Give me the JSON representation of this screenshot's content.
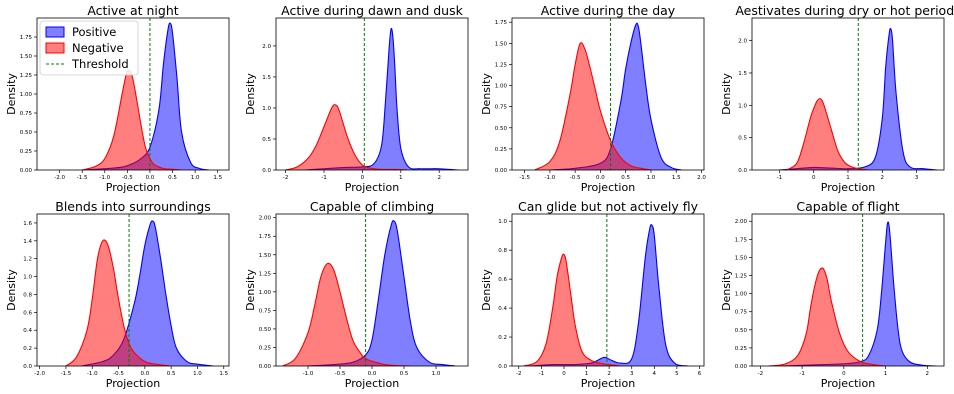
{
  "legend": {
    "placement": "top-left",
    "panel": 0,
    "entries": [
      {
        "label": "Positive",
        "color": "#0000ff",
        "kind": "patch"
      },
      {
        "label": "Negative",
        "color": "#ff0000",
        "kind": "patch"
      },
      {
        "label": "Threshold",
        "color": "#008000",
        "kind": "dashed-line"
      }
    ]
  },
  "colors": {
    "positive": "#0000ff",
    "negative": "#ff0000",
    "threshold": "#008000"
  },
  "chart_data": [
    {
      "type": "area",
      "title": "Active at night",
      "xlabel": "Projection",
      "ylabel": "Density",
      "xlim": [
        -2.5,
        1.75
      ],
      "ylim": [
        0,
        2.0
      ],
      "xticks": [
        "-2.0",
        "-1.5",
        "-1.0",
        "-0.5",
        "0.0",
        "0.5",
        "1.0",
        "1.5"
      ],
      "yticks": [
        "0.00",
        "0.25",
        "0.50",
        "0.75",
        "1.00",
        "1.25",
        "1.50",
        "1.75"
      ],
      "grid": false,
      "threshold": 0.0,
      "series": [
        {
          "name": "Positive",
          "x": [
            -1.5,
            -1.2,
            -0.9,
            -0.6,
            -0.4,
            -0.2,
            0.0,
            0.2,
            0.3,
            0.4,
            0.45,
            0.5,
            0.6,
            0.7,
            0.9,
            1.1,
            1.3
          ],
          "y": [
            0.0,
            0.01,
            0.02,
            0.04,
            0.08,
            0.15,
            0.3,
            0.8,
            1.4,
            1.85,
            1.93,
            1.8,
            1.2,
            0.5,
            0.1,
            0.02,
            0.0
          ]
        },
        {
          "name": "Negative",
          "x": [
            -1.5,
            -1.2,
            -1.0,
            -0.8,
            -0.6,
            -0.5,
            -0.4,
            -0.3,
            -0.2,
            -0.1,
            0.0,
            0.1,
            0.3,
            0.5,
            0.7
          ],
          "y": [
            0.0,
            0.05,
            0.15,
            0.45,
            1.05,
            1.3,
            1.25,
            0.95,
            0.6,
            0.3,
            0.15,
            0.07,
            0.02,
            0.01,
            0.0
          ]
        }
      ]
    },
    {
      "type": "area",
      "title": "Active during dawn and dusk",
      "xlabel": "Projection",
      "ylabel": "Density",
      "xlim": [
        -2.25,
        2.75
      ],
      "ylim": [
        0,
        2.45
      ],
      "xticks": [
        "-2",
        "-1",
        "0",
        "1",
        "2"
      ],
      "yticks": [
        "0.0",
        "0.5",
        "1.0",
        "1.5",
        "2.0"
      ],
      "grid": false,
      "threshold": 0.05,
      "series": [
        {
          "name": "Positive",
          "x": [
            -1.5,
            -1.0,
            -0.5,
            0.0,
            0.3,
            0.5,
            0.6,
            0.7,
            0.75,
            0.8,
            0.85,
            0.9,
            1.0,
            1.2,
            1.5,
            2.0,
            2.5
          ],
          "y": [
            0.0,
            0.02,
            0.04,
            0.05,
            0.1,
            0.4,
            1.1,
            2.0,
            2.28,
            2.1,
            1.6,
            1.0,
            0.35,
            0.05,
            0.02,
            0.02,
            0.0
          ]
        },
        {
          "name": "Negative",
          "x": [
            -2.0,
            -1.7,
            -1.4,
            -1.2,
            -1.0,
            -0.8,
            -0.7,
            -0.6,
            -0.4,
            -0.2,
            0.0,
            0.2,
            0.5,
            0.8,
            1.2
          ],
          "y": [
            0.0,
            0.05,
            0.2,
            0.4,
            0.7,
            1.0,
            1.05,
            0.95,
            0.55,
            0.25,
            0.08,
            0.03,
            0.01,
            0.01,
            0.0
          ]
        }
      ]
    },
    {
      "type": "area",
      "title": "Active during the day",
      "xlabel": "Projection",
      "ylabel": "Density",
      "xlim": [
        -1.75,
        2.05
      ],
      "ylim": [
        0,
        1.8
      ],
      "xticks": [
        "-1.5",
        "-1.0",
        "-0.5",
        "0.0",
        "0.5",
        "1.0",
        "1.5",
        "2.0"
      ],
      "yticks": [
        "0.00",
        "0.25",
        "0.50",
        "0.75",
        "1.00",
        "1.25",
        "1.50",
        "1.75"
      ],
      "grid": false,
      "threshold": 0.2,
      "series": [
        {
          "name": "Positive",
          "x": [
            -1.0,
            -0.5,
            0.0,
            0.2,
            0.4,
            0.5,
            0.6,
            0.7,
            0.75,
            0.8,
            0.9,
            1.0,
            1.2,
            1.4,
            1.6
          ],
          "y": [
            0.0,
            0.02,
            0.08,
            0.25,
            0.8,
            1.2,
            1.5,
            1.72,
            1.7,
            1.5,
            1.0,
            0.6,
            0.15,
            0.03,
            0.0
          ]
        },
        {
          "name": "Negative",
          "x": [
            -1.3,
            -1.0,
            -0.8,
            -0.6,
            -0.5,
            -0.4,
            -0.3,
            -0.2,
            -0.1,
            0.0,
            0.2,
            0.4,
            0.6,
            0.8,
            1.0
          ],
          "y": [
            0.0,
            0.1,
            0.35,
            0.9,
            1.25,
            1.5,
            1.42,
            1.2,
            0.95,
            0.7,
            0.35,
            0.15,
            0.05,
            0.02,
            0.0
          ]
        }
      ]
    },
    {
      "type": "area",
      "title": "Aestivates during dry or hot periods",
      "xlabel": "Projection",
      "ylabel": "Density",
      "xlim": [
        -1.8,
        3.8
      ],
      "ylim": [
        0,
        2.35
      ],
      "xticks": [
        "-1",
        "0",
        "1",
        "2",
        "3"
      ],
      "yticks": [
        "0.0",
        "0.5",
        "1.0",
        "1.5",
        "2.0"
      ],
      "grid": false,
      "threshold": 1.3,
      "series": [
        {
          "name": "Positive",
          "x": [
            -1.0,
            -0.5,
            0.0,
            0.5,
            1.0,
            1.5,
            1.8,
            2.0,
            2.1,
            2.2,
            2.25,
            2.3,
            2.4,
            2.6,
            2.8,
            3.2,
            3.6
          ],
          "y": [
            0.0,
            0.02,
            0.04,
            0.03,
            0.02,
            0.05,
            0.2,
            0.8,
            1.6,
            2.1,
            2.18,
            2.0,
            1.2,
            0.3,
            0.05,
            0.02,
            0.0
          ]
        },
        {
          "name": "Negative",
          "x": [
            -0.8,
            -0.5,
            -0.3,
            -0.1,
            0.0,
            0.1,
            0.2,
            0.3,
            0.5,
            0.7,
            0.9,
            1.1,
            1.3,
            1.6
          ],
          "y": [
            0.0,
            0.1,
            0.4,
            0.8,
            0.95,
            1.07,
            1.1,
            1.0,
            0.65,
            0.3,
            0.12,
            0.05,
            0.02,
            0.0
          ]
        }
      ]
    },
    {
      "type": "area",
      "title": "Blends into surroundings",
      "xlabel": "Projection",
      "ylabel": "Density",
      "xlim": [
        -2.05,
        1.6
      ],
      "ylim": [
        0,
        1.7
      ],
      "xticks": [
        "-2.0",
        "-1.5",
        "-1.0",
        "-0.5",
        "0.0",
        "0.5",
        "1.0",
        "1.5"
      ],
      "yticks": [
        "0.0",
        "0.2",
        "0.4",
        "0.6",
        "0.8",
        "1.0",
        "1.2",
        "1.4",
        "1.6"
      ],
      "grid": false,
      "threshold": -0.3,
      "series": [
        {
          "name": "Positive",
          "x": [
            -1.2,
            -0.8,
            -0.6,
            -0.4,
            -0.2,
            -0.1,
            0.0,
            0.1,
            0.15,
            0.2,
            0.3,
            0.4,
            0.5,
            0.6,
            0.8,
            1.0,
            1.3
          ],
          "y": [
            0.0,
            0.05,
            0.12,
            0.3,
            0.7,
            1.0,
            1.35,
            1.58,
            1.62,
            1.55,
            1.2,
            0.8,
            0.45,
            0.2,
            0.05,
            0.02,
            0.0
          ]
        },
        {
          "name": "Negative",
          "x": [
            -1.5,
            -1.3,
            -1.1,
            -1.0,
            -0.9,
            -0.8,
            -0.7,
            -0.6,
            -0.5,
            -0.4,
            -0.3,
            -0.2,
            0.0,
            0.2,
            0.5
          ],
          "y": [
            0.0,
            0.1,
            0.4,
            0.75,
            1.2,
            1.4,
            1.35,
            1.1,
            0.75,
            0.45,
            0.25,
            0.15,
            0.05,
            0.02,
            0.0
          ]
        }
      ]
    },
    {
      "type": "area",
      "title": "Capable of climbing",
      "xlabel": "Projection",
      "ylabel": "Density",
      "xlim": [
        -1.5,
        1.5
      ],
      "ylim": [
        0,
        2.05
      ],
      "xticks": [
        "-1.0",
        "-0.5",
        "0.0",
        "0.5",
        "1.0"
      ],
      "yticks": [
        "0.00",
        "0.25",
        "0.50",
        "0.75",
        "1.00",
        "1.25",
        "1.50",
        "1.75",
        "2.00"
      ],
      "grid": false,
      "threshold": -0.1,
      "series": [
        {
          "name": "Positive",
          "x": [
            -1.0,
            -0.6,
            -0.3,
            -0.1,
            0.0,
            0.1,
            0.2,
            0.3,
            0.35,
            0.4,
            0.5,
            0.6,
            0.7,
            0.9,
            1.1,
            1.3
          ],
          "y": [
            0.0,
            0.02,
            0.05,
            0.15,
            0.35,
            0.9,
            1.5,
            1.9,
            1.95,
            1.8,
            1.2,
            0.6,
            0.25,
            0.05,
            0.02,
            0.0
          ]
        },
        {
          "name": "Negative",
          "x": [
            -1.4,
            -1.2,
            -1.0,
            -0.9,
            -0.8,
            -0.7,
            -0.6,
            -0.5,
            -0.4,
            -0.3,
            -0.2,
            -0.1,
            0.1,
            0.3,
            0.6
          ],
          "y": [
            0.0,
            0.1,
            0.45,
            0.8,
            1.2,
            1.38,
            1.3,
            1.0,
            0.65,
            0.35,
            0.2,
            0.1,
            0.04,
            0.01,
            0.0
          ]
        }
      ]
    },
    {
      "type": "area",
      "title": "Can glide but not actively fly",
      "xlabel": "Projection",
      "ylabel": "Density",
      "xlim": [
        -2.3,
        6.2
      ],
      "ylim": [
        0,
        1.05
      ],
      "xticks": [
        "-2",
        "-1",
        "0",
        "1",
        "2",
        "3",
        "4",
        "5",
        "6"
      ],
      "yticks": [
        "0.0",
        "0.2",
        "0.4",
        "0.6",
        "0.8",
        "1.0"
      ],
      "grid": false,
      "threshold": 1.9,
      "series": [
        {
          "name": "Positive",
          "x": [
            -1.5,
            -0.5,
            0.5,
            1.2,
            1.5,
            1.8,
            2.1,
            2.5,
            3.0,
            3.3,
            3.6,
            3.8,
            3.9,
            4.0,
            4.2,
            4.5,
            4.9,
            5.5
          ],
          "y": [
            0.0,
            0.01,
            0.01,
            0.02,
            0.04,
            0.06,
            0.04,
            0.02,
            0.05,
            0.3,
            0.75,
            0.95,
            0.97,
            0.9,
            0.55,
            0.15,
            0.02,
            0.0
          ]
        },
        {
          "name": "Negative",
          "x": [
            -1.8,
            -1.2,
            -0.8,
            -0.5,
            -0.3,
            -0.1,
            0.0,
            0.1,
            0.3,
            0.5,
            0.8,
            1.2,
            1.6,
            2.0,
            2.5
          ],
          "y": [
            0.0,
            0.03,
            0.15,
            0.4,
            0.62,
            0.75,
            0.77,
            0.72,
            0.5,
            0.28,
            0.1,
            0.04,
            0.02,
            0.01,
            0.0
          ]
        }
      ]
    },
    {
      "type": "area",
      "title": "Capable of flight",
      "xlabel": "Projection",
      "ylabel": "Density",
      "xlim": [
        -2.2,
        2.4
      ],
      "ylim": [
        0,
        2.1
      ],
      "xticks": [
        "-2",
        "-1",
        "0",
        "1",
        "2"
      ],
      "yticks": [
        "0.00",
        "0.25",
        "0.50",
        "0.75",
        "1.00",
        "1.25",
        "1.50",
        "1.75",
        "2.00"
      ],
      "grid": false,
      "threshold": 0.45,
      "series": [
        {
          "name": "Positive",
          "x": [
            -1.5,
            -1.0,
            -0.5,
            0.0,
            0.4,
            0.6,
            0.8,
            0.9,
            1.0,
            1.05,
            1.1,
            1.2,
            1.3,
            1.4,
            1.6,
            1.9,
            2.2
          ],
          "y": [
            0.0,
            0.01,
            0.02,
            0.03,
            0.06,
            0.15,
            0.5,
            1.0,
            1.7,
            1.98,
            1.85,
            1.1,
            0.5,
            0.2,
            0.05,
            0.01,
            0.0
          ]
        },
        {
          "name": "Negative",
          "x": [
            -1.8,
            -1.4,
            -1.1,
            -0.9,
            -0.8,
            -0.7,
            -0.6,
            -0.5,
            -0.4,
            -0.3,
            -0.1,
            0.1,
            0.4,
            0.7,
            1.0
          ],
          "y": [
            0.0,
            0.03,
            0.15,
            0.45,
            0.8,
            1.1,
            1.3,
            1.35,
            1.2,
            0.9,
            0.45,
            0.2,
            0.06,
            0.02,
            0.0
          ]
        }
      ]
    }
  ]
}
